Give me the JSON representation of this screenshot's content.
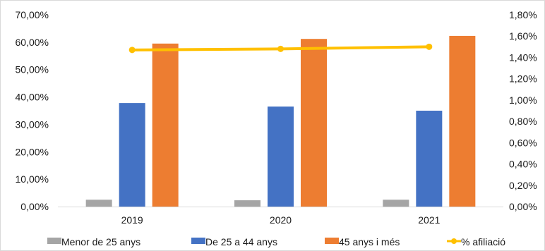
{
  "colors": {
    "menor25": "#A5A5A5",
    "de25a44": "#4472C4",
    "mes45": "#ED7D31",
    "afiliacio": "#FFC000",
    "axis": "#d9d9d9",
    "grid": "#d9d9d9"
  },
  "chart_data": {
    "type": "bar",
    "categories": [
      "2019",
      "2020",
      "2021"
    ],
    "series": [
      {
        "name": "Menor de 25 anys",
        "values": [
          2.5,
          2.3,
          2.5
        ],
        "color_key": "menor25",
        "axis": "left"
      },
      {
        "name": "De 25 a 44 anys",
        "values": [
          37.8,
          36.5,
          35.0
        ],
        "color_key": "de25a44",
        "axis": "left"
      },
      {
        "name": "45 anys i més",
        "values": [
          59.5,
          61.2,
          62.3
        ],
        "color_key": "mes45",
        "axis": "left"
      }
    ],
    "line_series": [
      {
        "name": "% afiliació",
        "values": [
          1.47,
          1.48,
          1.5
        ],
        "color_key": "afiliacio",
        "axis": "right",
        "marker": "circle"
      }
    ],
    "y_left": {
      "min": 0,
      "max": 70,
      "step": 10,
      "ticks": [
        "0,00%",
        "10,00%",
        "20,00%",
        "30,00%",
        "40,00%",
        "50,00%",
        "60,00%",
        "70,00%"
      ]
    },
    "y_right": {
      "min": 0,
      "max": 1.8,
      "step": 0.2,
      "ticks": [
        "0,00%",
        "0,20%",
        "0,40%",
        "0,60%",
        "0,80%",
        "1,00%",
        "1,20%",
        "1,40%",
        "1,60%",
        "1,80%"
      ]
    },
    "grid": true,
    "legend_position": "bottom"
  }
}
